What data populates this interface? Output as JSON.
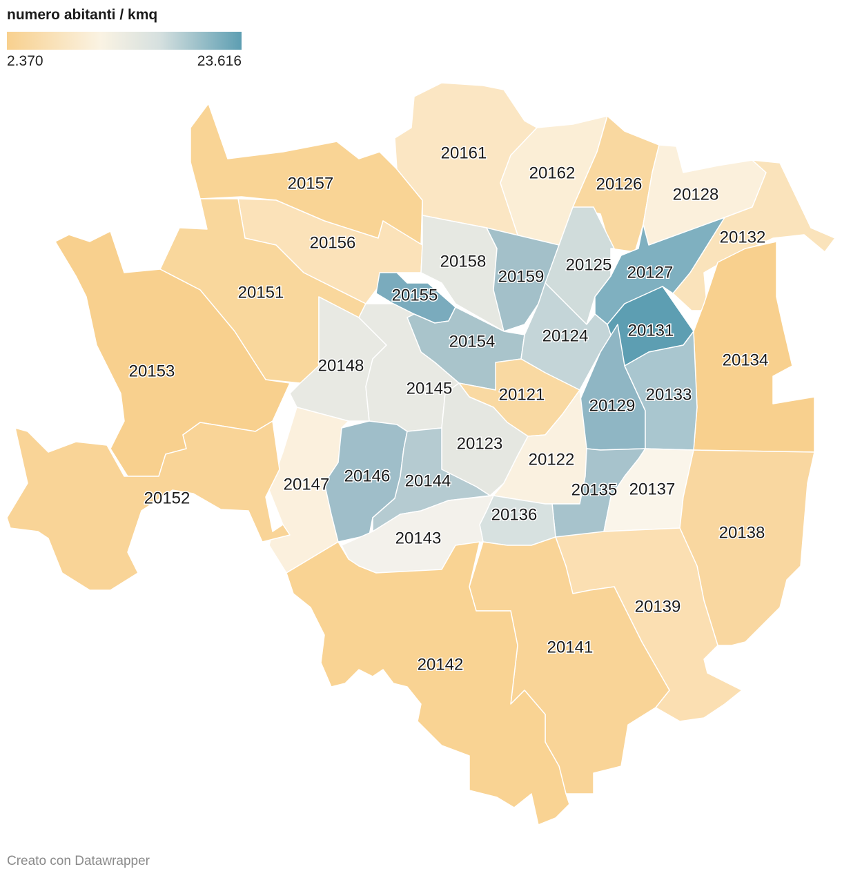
{
  "legend": {
    "title": "numero abitanti / kmq",
    "min_label": "2.370",
    "max_label": "23.616",
    "colors": [
      "#f8d08e",
      "#faf3e3",
      "#d6e0df",
      "#5d9eb2"
    ]
  },
  "footer": {
    "text": "Creato con Datawrapper"
  },
  "zones": [
    {
      "code": "20157",
      "fill": "#f9d495"
    },
    {
      "code": "20161",
      "fill": "#fbe6c3"
    },
    {
      "code": "20162",
      "fill": "#fbeed6"
    },
    {
      "code": "20126",
      "fill": "#f9d8a0"
    },
    {
      "code": "20128",
      "fill": "#fbf0dc"
    },
    {
      "code": "20132",
      "fill": "#fae3bb"
    },
    {
      "code": "20156",
      "fill": "#fbe2b9"
    },
    {
      "code": "20151",
      "fill": "#f9d79c"
    },
    {
      "code": "20153",
      "fill": "#f8d08e"
    },
    {
      "code": "20158",
      "fill": "#e6e8e2"
    },
    {
      "code": "20159",
      "fill": "#a3c0c9"
    },
    {
      "code": "20125",
      "fill": "#d0dcdb"
    },
    {
      "code": "20127",
      "fill": "#7fb0c0"
    },
    {
      "code": "20155",
      "fill": "#7aabbd"
    },
    {
      "code": "20154",
      "fill": "#a9c4cb"
    },
    {
      "code": "20124",
      "fill": "#c4d5d8"
    },
    {
      "code": "20131",
      "fill": "#5d9eb2"
    },
    {
      "code": "20134",
      "fill": "#f8d08e"
    },
    {
      "code": "20148",
      "fill": "#e8e9e3"
    },
    {
      "code": "20145",
      "fill": "#e8e9e3"
    },
    {
      "code": "20121",
      "fill": "#f9d9a2"
    },
    {
      "code": "20129",
      "fill": "#8fb6c4"
    },
    {
      "code": "20133",
      "fill": "#a9c6cf"
    },
    {
      "code": "20123",
      "fill": "#e5e7e1"
    },
    {
      "code": "20122",
      "fill": "#faf1e0"
    },
    {
      "code": "20147",
      "fill": "#fbf0dd"
    },
    {
      "code": "20146",
      "fill": "#9fbec9"
    },
    {
      "code": "20144",
      "fill": "#b5cbd1"
    },
    {
      "code": "20152",
      "fill": "#f9d497"
    },
    {
      "code": "20135",
      "fill": "#a7c3cc"
    },
    {
      "code": "20137",
      "fill": "#faf5ea"
    },
    {
      "code": "20136",
      "fill": "#d7e1e0"
    },
    {
      "code": "20143",
      "fill": "#f3f1eb"
    },
    {
      "code": "20138",
      "fill": "#f9d7a0"
    },
    {
      "code": "20139",
      "fill": "#fbdfb2"
    },
    {
      "code": "20141",
      "fill": "#f9d497"
    },
    {
      "code": "20142",
      "fill": "#f9d393"
    }
  ]
}
